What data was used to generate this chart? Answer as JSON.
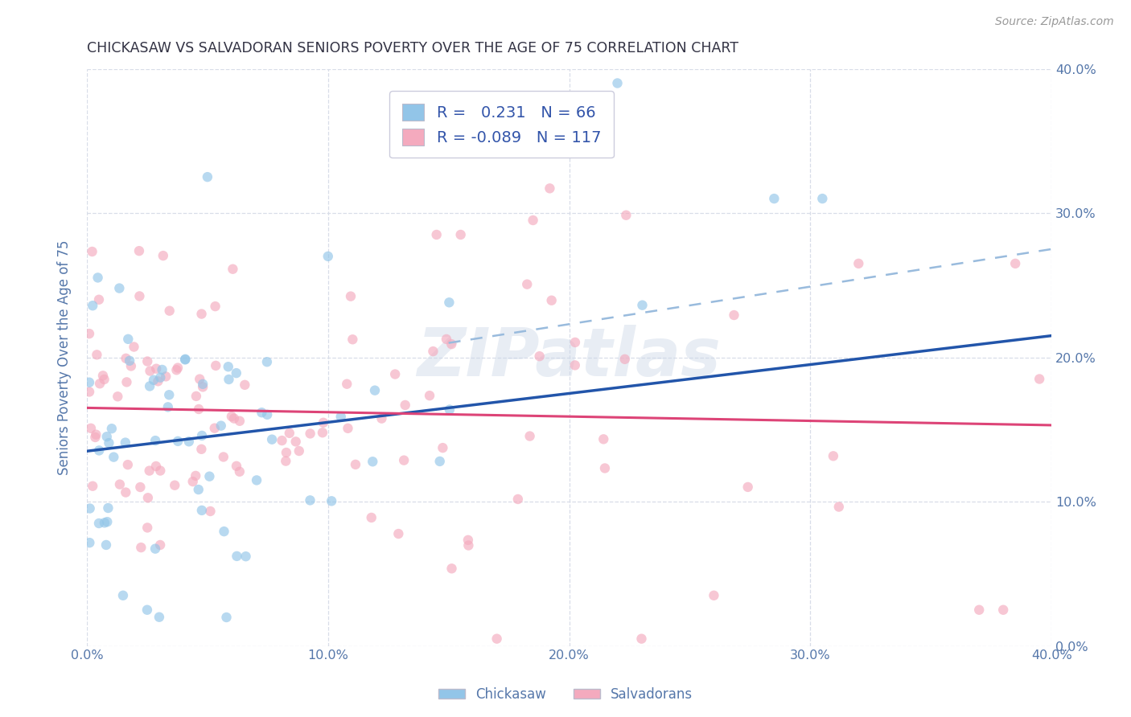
{
  "title": "CHICKASAW VS SALVADORAN SENIORS POVERTY OVER THE AGE OF 75 CORRELATION CHART",
  "source": "Source: ZipAtlas.com",
  "ylabel": "Seniors Poverty Over the Age of 75",
  "xlim": [
    0.0,
    0.4
  ],
  "ylim": [
    0.0,
    0.4
  ],
  "chickasaw_color": "#92c5e8",
  "salvadoran_color": "#f4aabe",
  "chickasaw_line_color": "#2255aa",
  "salvadoran_line_color": "#dd4477",
  "dashed_line_color": "#99bbdd",
  "R_chickasaw": 0.231,
  "N_chickasaw": 66,
  "R_salvadoran": -0.089,
  "N_salvadoran": 117,
  "title_color": "#333344",
  "axis_label_color": "#5577aa",
  "legend_text_color": "#3355aa",
  "watermark": "ZIPatlas",
  "background_color": "#ffffff",
  "grid_color": "#d8dde8",
  "marker_size": 80,
  "marker_alpha": 0.65,
  "chickasaw_line_intercept": 0.135,
  "chickasaw_line_slope": 0.2,
  "salvadoran_line_intercept": 0.165,
  "salvadoran_line_slope": -0.03,
  "dashed_line_start_x": 0.15,
  "dashed_line_start_y": 0.21,
  "dashed_line_end_x": 0.4,
  "dashed_line_end_y": 0.275
}
